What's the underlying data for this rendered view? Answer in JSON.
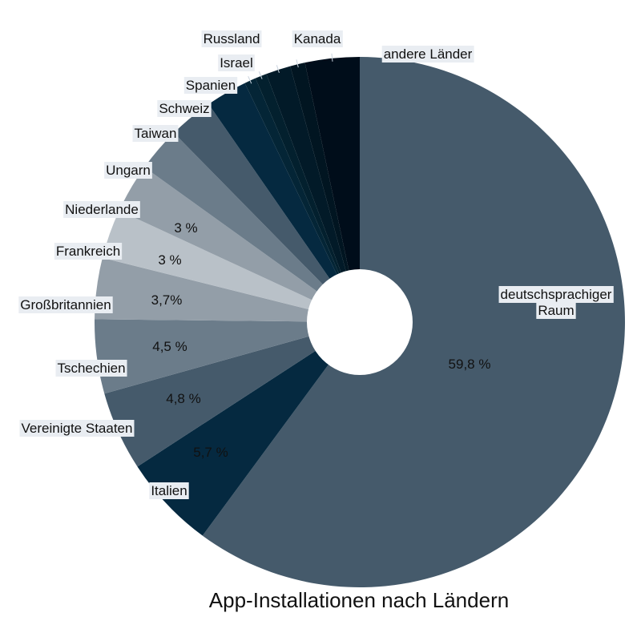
{
  "chart_data": {
    "type": "pie",
    "title": "App-Installationen nach Ländern",
    "donut": true,
    "slices": [
      {
        "label": "deutschsprachiger Raum",
        "value": 59.8,
        "value_label": "59,8 %",
        "color": "#455a6b"
      },
      {
        "label": "Italien",
        "value": 5.7,
        "value_label": "5,7 %",
        "color": "#052940"
      },
      {
        "label": "Vereinigte Staaten",
        "value": 4.8,
        "value_label": "4,8 %",
        "color": "#455a6b"
      },
      {
        "label": "Tschechien",
        "value": 4.5,
        "value_label": "4,5 %",
        "color": "#6b7c8a"
      },
      {
        "label": "Großbritannien",
        "value": 3.7,
        "value_label": "3,7%",
        "color": "#939ea8"
      },
      {
        "label": "Frankreich",
        "value": 3.0,
        "value_label": "3 %",
        "color": "#b9c1c8"
      },
      {
        "label": "Niederlande",
        "value": 3.0,
        "value_label": "3 %",
        "color": "#939ea8"
      },
      {
        "label": "Ungarn",
        "value": 2.7,
        "value_label": "",
        "color": "#6b7c8a"
      },
      {
        "label": "Taiwan",
        "value": 2.7,
        "value_label": "",
        "color": "#455a6b"
      },
      {
        "label": "Schweiz",
        "value": 2.5,
        "value_label": "",
        "color": "#052940"
      },
      {
        "label": "Spanien",
        "value": 0.7,
        "value_label": "",
        "color": "#042536"
      },
      {
        "label": "Israel",
        "value": 0.7,
        "value_label": "",
        "color": "#03202e"
      },
      {
        "label": "Russland",
        "value": 1.5,
        "value_label": "",
        "color": "#021a28"
      },
      {
        "label": "Kanada",
        "value": 0.9,
        "value_label": "",
        "color": "#011521"
      },
      {
        "label": "andere Länder",
        "value": 3.3,
        "value_label": "",
        "color": "#000d1a"
      }
    ]
  }
}
